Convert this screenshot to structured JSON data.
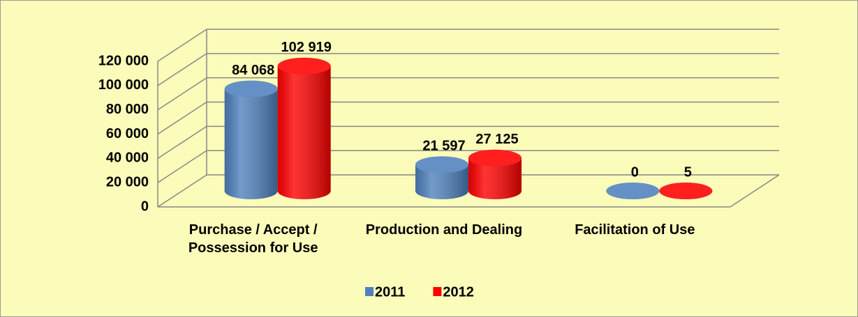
{
  "chart_data": {
    "type": "bar3d",
    "categories": [
      "Purchase / Accept / Possession for Use",
      "Production and Dealing",
      "Facilitation of Use"
    ],
    "series": [
      {
        "name": "2011",
        "color": "#4f81bd",
        "values": [
          84068,
          21597,
          0
        ],
        "value_labels": [
          "84 068",
          "21 597",
          "0"
        ]
      },
      {
        "name": "2012",
        "color": "#ff0000",
        "values": [
          102919,
          27125,
          5
        ],
        "value_labels": [
          "102 919",
          "27 125",
          "5"
        ]
      }
    ],
    "ylim": [
      0,
      120000
    ],
    "yticks": [
      0,
      {
        "value": 20000,
        "label": "20 000"
      },
      {
        "value": 40000,
        "label": "40 000"
      },
      {
        "value": 60000,
        "label": "60 000"
      },
      {
        "value": 80000,
        "label": "80 000"
      },
      {
        "value": 100000,
        "label": "100 000"
      },
      {
        "value": 120000,
        "label": "120 000"
      }
    ],
    "grid": true,
    "legend": "bottom"
  }
}
